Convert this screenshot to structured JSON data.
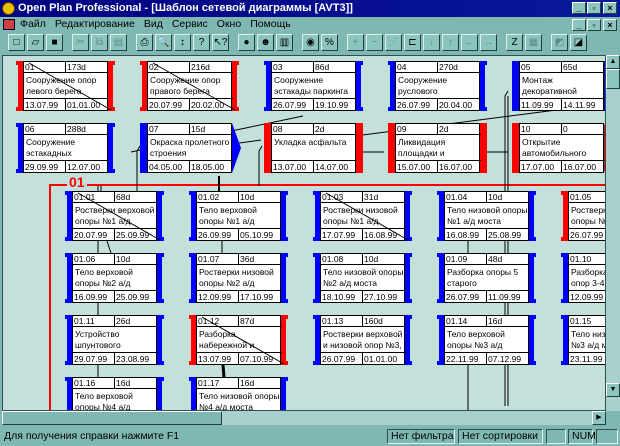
{
  "window": {
    "title": "Open Plan Professional - [Шаблон сетевой диаграммы [AVT3]]"
  },
  "menu": [
    "Файл",
    "Редактирование",
    "Вид",
    "Сервис",
    "Окно",
    "Помощь"
  ],
  "toolbar": [
    {
      "icon": "new-icon",
      "g": "□"
    },
    {
      "icon": "open-icon",
      "g": "▱"
    },
    {
      "icon": "save-icon",
      "g": "■"
    },
    {
      "icon": "cut-icon",
      "g": "✂",
      "dis": true
    },
    {
      "icon": "copy-icon",
      "g": "⧉",
      "dis": true
    },
    {
      "icon": "paste-icon",
      "g": "▤",
      "dis": true
    },
    {
      "icon": "print-icon",
      "g": "⎙"
    },
    {
      "icon": "print-preview-icon",
      "g": "🔍"
    },
    {
      "icon": "sort-icon",
      "g": "↕"
    },
    {
      "icon": "help-icon",
      "g": "?"
    },
    {
      "icon": "context-help-icon",
      "g": "↖?"
    },
    {
      "icon": "circle-icon",
      "g": "●"
    },
    {
      "icon": "resource-icon",
      "g": "☻"
    },
    {
      "icon": "chart-icon",
      "g": "▥"
    },
    {
      "icon": "progress-icon",
      "g": "◉"
    },
    {
      "icon": "percent-icon",
      "g": "%"
    },
    {
      "icon": "add-icon",
      "g": "+",
      "dis": true
    },
    {
      "icon": "remove-icon",
      "g": "−",
      "dis": true
    },
    {
      "icon": "link-icon",
      "g": "⋰",
      "dis": true
    },
    {
      "icon": "unlink-icon",
      "g": "⊏"
    },
    {
      "icon": "arrow-down-icon",
      "g": "↓",
      "dis": true
    },
    {
      "icon": "arrow-up-icon",
      "g": "↑",
      "dis": true
    },
    {
      "icon": "arrow-left-icon",
      "g": "←",
      "dis": true
    },
    {
      "icon": "arrow-right-icon",
      "g": "→",
      "dis": true
    },
    {
      "icon": "zoom-icon",
      "g": "Z"
    },
    {
      "icon": "layout-icon",
      "g": "▦",
      "dis": true
    },
    {
      "icon": "collapse-icon",
      "g": "◩",
      "dis": true
    },
    {
      "icon": "expand-icon",
      "g": "◪"
    }
  ],
  "colors": {
    "red": "#ff0000",
    "blue": "#0000ff",
    "canvas": "#c4e0da",
    "chrome": "#7fb8b2"
  },
  "group": {
    "label": "01"
  },
  "nodes": [
    {
      "id": "01",
      "dur": "173d",
      "name": "Сооружение опор левого берега",
      "start": "13.07.99",
      "end": "01.01.00",
      "lc": "red",
      "r": "bracket",
      "rc": "red",
      "done": true
    },
    {
      "id": "02",
      "dur": "216d",
      "name": "Сооружение опор правого берега",
      "start": "20.07.99",
      "end": "20.02.00",
      "lc": "red",
      "r": "bracket",
      "rc": "red",
      "done": true
    },
    {
      "id": "03",
      "dur": "86d",
      "name": "Сооружение эстакады паркинга от ПК 133+10",
      "start": "26.07.99",
      "end": "19.10.99",
      "lc": "blue",
      "r": "bracket",
      "rc": "blue"
    },
    {
      "id": "04",
      "dur": "270d",
      "name": "Сооружение руслового пролетного строения 4-5",
      "start": "26.07.99",
      "end": "20.04.00",
      "lc": "blue",
      "r": "bracket",
      "rc": "blue"
    },
    {
      "id": "05",
      "dur": "65d",
      "name": "Монтаж декоративной облицовки опор",
      "start": "11.09.99",
      "end": "14.11.99",
      "lc": "blue",
      "r": "bar",
      "rc": "blue",
      "lb": "bar"
    },
    {
      "id": "06",
      "dur": "288d",
      "name": "Сооружение эстакадных пролетных строений а/д",
      "start": "29.09.99",
      "end": "12.07.00",
      "lc": "blue",
      "r": "bracket",
      "rc": "blue"
    },
    {
      "id": "07",
      "dur": "15d",
      "name": "Окраска пролетного строения",
      "start": "04.05.00",
      "end": "18.05.00",
      "lc": "blue",
      "r": "arrow",
      "rc": "blue",
      "lb": "bar"
    },
    {
      "id": "08",
      "dur": "2d",
      "name": "Укладка асфальта",
      "start": "13.07.00",
      "end": "14.07.00",
      "lc": "red",
      "r": "bar",
      "rc": "red",
      "lb": "bar"
    },
    {
      "id": "09",
      "dur": "2d",
      "name": "Ликвидация площадки и благоустройство",
      "start": "15.07.00",
      "end": "16.07.00",
      "lc": "red",
      "r": "bar",
      "rc": "red",
      "lb": "bar"
    },
    {
      "id": "10",
      "dur": "0",
      "name": "Открытие автомобильного",
      "start": "17.07.00",
      "end": "16.07.00",
      "lc": "red",
      "r": "arrow",
      "rc": "red",
      "lb": "bar"
    },
    {
      "id": "01.01",
      "dur": "68d",
      "name": "Ростверки верховой опоры №1 а/д моста",
      "start": "20.07.99",
      "end": "25.09.99",
      "lc": "blue",
      "r": "bracket",
      "rc": "blue",
      "done": true
    },
    {
      "id": "01.02",
      "dur": "10d",
      "name": "Тело верховой опоры №1 а/д моста",
      "start": "26.09.99",
      "end": "05.10.99",
      "lc": "blue",
      "r": "bracket",
      "rc": "blue"
    },
    {
      "id": "01.03",
      "dur": "31d",
      "name": "Ростверки низовой опоры №1 а/д моста",
      "start": "17.07.99",
      "end": "16.08.99",
      "lc": "blue",
      "r": "bracket",
      "rc": "blue",
      "done": true
    },
    {
      "id": "01.04",
      "dur": "10d",
      "name": "Тело низовой опоры №1 а/д моста",
      "start": "16.08.99",
      "end": "25.08.99",
      "lc": "blue",
      "r": "bracket",
      "rc": "blue"
    },
    {
      "id": "01.05",
      "dur": "",
      "name": "Ростверки верховой опоры №2 а/д моста",
      "start": "26.07.99",
      "end": "",
      "lc": "red",
      "r": "bracket",
      "rc": "red"
    },
    {
      "id": "01.06",
      "dur": "10d",
      "name": "Тело верховой опоры №2 а/д моста",
      "start": "16.09.99",
      "end": "25.09.99",
      "lc": "blue",
      "r": "bracket",
      "rc": "blue"
    },
    {
      "id": "01.07",
      "dur": "36d",
      "name": "Ростверки низовой опоры №2 а/д моста",
      "start": "12.09.99",
      "end": "17.10.99",
      "lc": "blue",
      "r": "bracket",
      "rc": "blue"
    },
    {
      "id": "01.08",
      "dur": "10d",
      "name": "Тело низовой опоры №2 а/д моста",
      "start": "18.10.99",
      "end": "27.10.99",
      "lc": "blue",
      "r": "bracket",
      "rc": "blue"
    },
    {
      "id": "01.09",
      "dur": "48d",
      "name": "Разборка опоры 5 старого Андреевского",
      "start": "26.07.99",
      "end": "11.09.99",
      "lc": "blue",
      "r": "bracket",
      "rc": "blue"
    },
    {
      "id": "01.10",
      "dur": "",
      "name": "Разборка оснований опор 3-4 старого",
      "start": "12.09.99",
      "end": "",
      "lc": "blue",
      "r": "bracket",
      "rc": "blue"
    },
    {
      "id": "01.11",
      "dur": "26d",
      "name": "Устройство шпунтового ограждения котлована",
      "start": "29.07.99",
      "end": "23.08.99",
      "lc": "blue",
      "r": "bracket",
      "rc": "blue"
    },
    {
      "id": "01.12",
      "dur": "87d",
      "name": "Разборка набережной и досыпка островка",
      "start": "13.07.99",
      "end": "07.10.99",
      "lc": "red",
      "r": "bracket",
      "rc": "red",
      "done": true
    },
    {
      "id": "01.13",
      "dur": "160d",
      "name": "Ростверки верховой и низовой опор №3, 4 а/д",
      "start": "26.07.99",
      "end": "01.01.00",
      "lc": "blue",
      "r": "bracket",
      "rc": "blue"
    },
    {
      "id": "01.14",
      "dur": "16d",
      "name": "Тело верховой опоры №3 а/д моста",
      "start": "22.11.99",
      "end": "07.12.99",
      "lc": "blue",
      "r": "bracket",
      "rc": "blue"
    },
    {
      "id": "01.15",
      "dur": "",
      "name": "Тело низовой опоры №3 а/д моста",
      "start": "23.11.99",
      "end": "",
      "lc": "blue",
      "r": "bracket",
      "rc": "blue"
    },
    {
      "id": "01.16",
      "dur": "16d",
      "name": "Тело верховой опоры №4 а/д моста",
      "start": "",
      "end": "",
      "lc": "blue",
      "r": "bracket",
      "rc": "blue"
    },
    {
      "id": "01.17",
      "dur": "16d",
      "name": "Тело низовой опоры №4 а/д моста",
      "start": "",
      "end": "",
      "lc": "blue",
      "r": "bracket",
      "rc": "blue"
    }
  ],
  "status": {
    "help": "Для получения справки нажмите F1",
    "filter": "Нет фильтра",
    "sort": "Нет сортировки",
    "num": "NUM"
  }
}
